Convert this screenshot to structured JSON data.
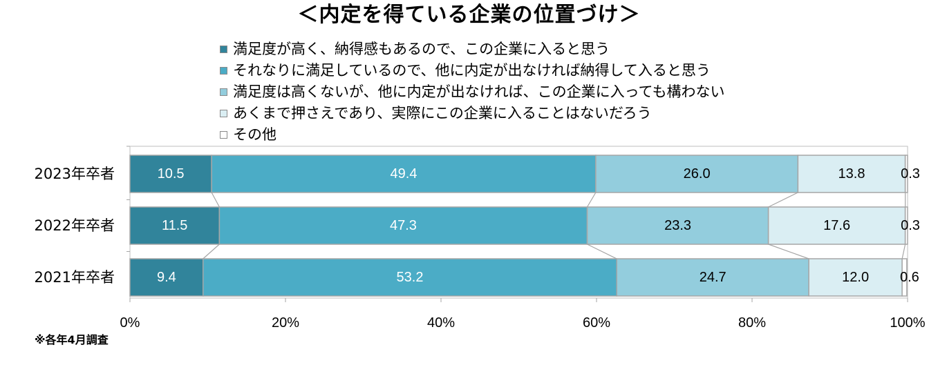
{
  "title": "＜内定を得ている企業の位置づけ＞",
  "footnote": "※各年4月調査",
  "chart_data": {
    "type": "bar",
    "orientation": "horizontal",
    "stacked": true,
    "categories": [
      "2023年卒者",
      "2022年卒者",
      "2021年卒者"
    ],
    "series": [
      {
        "name": "満足度が高く、納得感もあるので、この企業に入ると思う",
        "color": "#31849b",
        "label_color": "#ffffff",
        "values": [
          10.5,
          11.5,
          9.4
        ]
      },
      {
        "name": "それなりに満足しているので、他に内定が出なければ納得して入ると思う",
        "color": "#4bacc6",
        "label_color": "#ffffff",
        "values": [
          49.4,
          47.3,
          53.2
        ]
      },
      {
        "name": "満足度は高くないが、他に内定が出なければ、この企業に入っても構わない",
        "color": "#93cddd",
        "label_color": "#000000",
        "values": [
          26.0,
          23.3,
          24.7
        ]
      },
      {
        "name": "あくまで押さえであり、実際にこの企業に入ることはないだろう",
        "color": "#daeef3",
        "label_color": "#000000",
        "values": [
          13.8,
          17.6,
          12.0
        ]
      },
      {
        "name": "その他",
        "color": "#ffffff",
        "label_color": "#000000",
        "values": [
          0.3,
          0.3,
          0.6
        ]
      }
    ],
    "data_labels": [
      [
        "10.5",
        "49.4",
        "26.0",
        "13.8",
        "0.3"
      ],
      [
        "11.5",
        "47.3",
        "23.3",
        "17.6",
        "0.3"
      ],
      [
        "9.4",
        "53.2",
        "24.7",
        "12.0",
        "0.6"
      ]
    ],
    "x_ticks": [
      "0%",
      "20%",
      "40%",
      "60%",
      "80%",
      "100%"
    ],
    "xlim": [
      0,
      100
    ],
    "legend_position": "top",
    "series_lines": true,
    "grid": false,
    "xlabel": "",
    "ylabel": ""
  }
}
